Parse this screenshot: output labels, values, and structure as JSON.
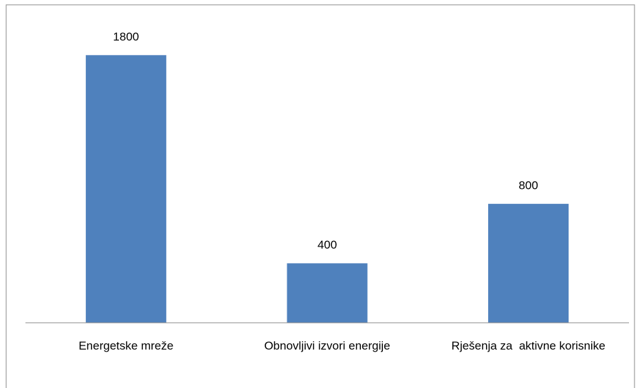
{
  "chart_data": {
    "type": "bar",
    "categories": [
      "Energetske mreže",
      "Obnovljivi izvori energije",
      "Rješenja za  aktivne korisnike"
    ],
    "values": [
      1800,
      400,
      800
    ],
    "color": "#4f81bd",
    "ylim": [
      0,
      2000
    ]
  }
}
